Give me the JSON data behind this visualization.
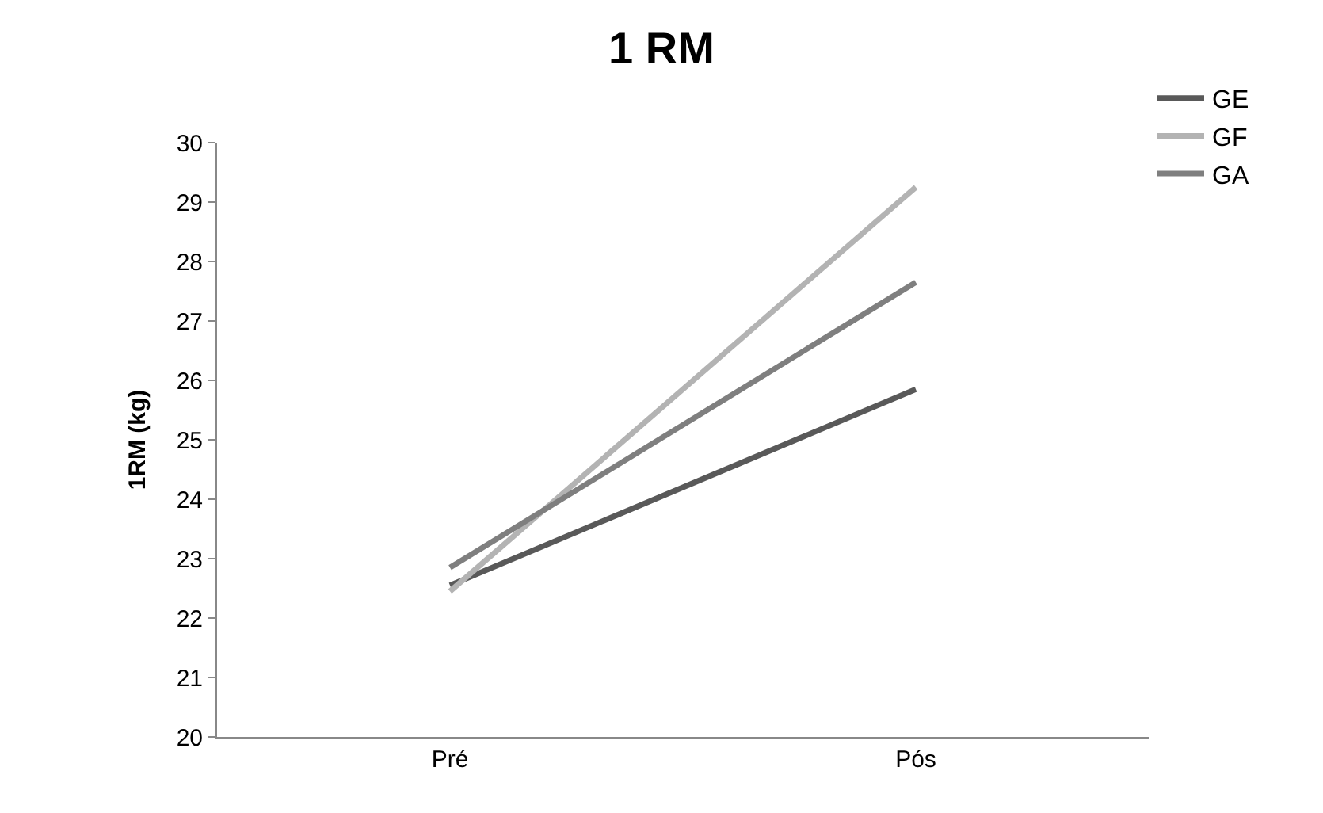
{
  "chart_data": {
    "type": "line",
    "title": "1 RM",
    "ylabel": "1RM (kg)",
    "categories": [
      "Pré",
      "Pós"
    ],
    "series": [
      {
        "name": "GE",
        "color": "#595959",
        "values": [
          22.55,
          25.85
        ]
      },
      {
        "name": "GF",
        "color": "#b3b3b3",
        "values": [
          22.45,
          29.25
        ]
      },
      {
        "name": "GA",
        "color": "#7f7f7f",
        "values": [
          22.85,
          27.65
        ]
      }
    ],
    "ylim": [
      20,
      30
    ],
    "yticks": [
      20,
      21,
      22,
      23,
      24,
      25,
      26,
      27,
      28,
      29,
      30
    ],
    "legend": "top right",
    "marker": "none",
    "line_style": "solid"
  }
}
